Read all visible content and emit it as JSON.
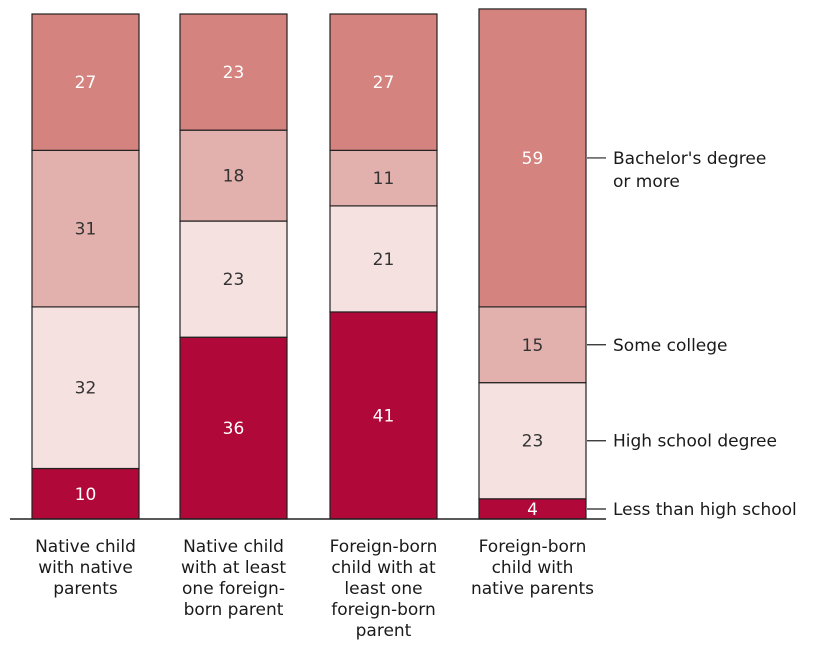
{
  "chart_data": {
    "type": "bar",
    "stacked": true,
    "categories": [
      "Native child with native parents",
      "Native child with at least one foreign-born parent",
      "Foreign-born child with at least one foreign-born parent",
      "Foreign-born child with native parents"
    ],
    "category_lines": [
      [
        "Native child",
        "with native",
        "parents"
      ],
      [
        "Native child",
        "with at least",
        "one foreign-",
        "born parent"
      ],
      [
        "Foreign-born",
        "child with at",
        "least one",
        "foreign-born",
        "parent"
      ],
      [
        "Foreign-born",
        "child with",
        "native parents"
      ]
    ],
    "series": [
      {
        "name": "Less than high school",
        "values": [
          10,
          36,
          41,
          4
        ],
        "color": "#b00838",
        "text_color": "#ffffff"
      },
      {
        "name": "High school degree",
        "values": [
          32,
          23,
          21,
          23
        ],
        "color": "#f5e1e0",
        "text_color": "#333333"
      },
      {
        "name": "Some college",
        "values": [
          31,
          18,
          11,
          15
        ],
        "color": "#e3b1ad",
        "text_color": "#333333"
      },
      {
        "name": "Bachelor's degree or more",
        "values": [
          27,
          23,
          27,
          59
        ],
        "color": "#d5837e",
        "text_color": "#ffffff"
      }
    ],
    "legend_lines": [
      [
        "Less than high school"
      ],
      [
        "High school degree"
      ],
      [
        "Some college"
      ],
      [
        "Bachelor's degree",
        "or more"
      ]
    ],
    "legend_placement": "right, labels beside last bar",
    "ylim": [
      0,
      100
    ],
    "grid": false
  }
}
